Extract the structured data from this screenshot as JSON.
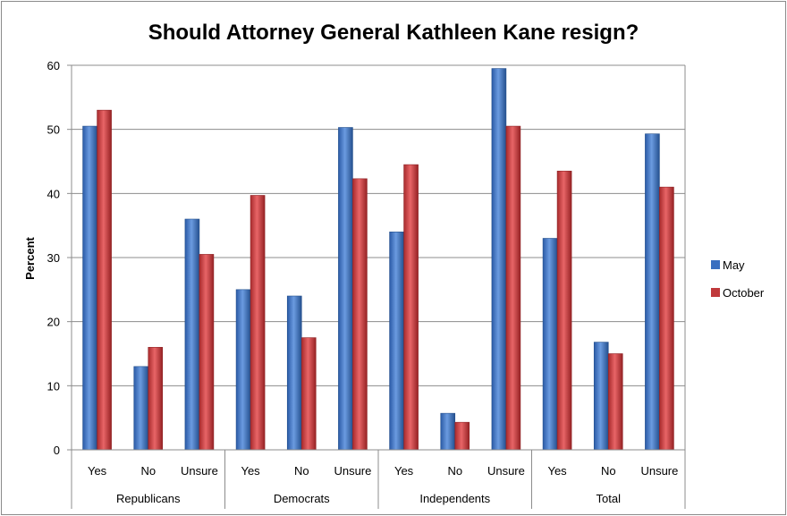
{
  "chart_data": {
    "type": "bar",
    "title": "Should Attorney General Kathleen Kane resign?",
    "xlabel": "",
    "ylabel": "Percent",
    "ylim": [
      0,
      60
    ],
    "yticks": [
      0,
      10,
      20,
      30,
      40,
      50,
      60
    ],
    "grid": true,
    "legend_position": "right",
    "groups": [
      "Republicans",
      "Democrats",
      "Independents",
      "Total"
    ],
    "categories": [
      "Yes",
      "No",
      "Unsure",
      "Yes",
      "No",
      "Unsure",
      "Yes",
      "No",
      "Unsure",
      "Yes",
      "No",
      "Unsure"
    ],
    "series": [
      {
        "name": "May",
        "color": "#3a6fc0",
        "values": [
          50.5,
          13,
          36,
          25,
          24,
          50.3,
          34,
          5.7,
          59.5,
          33,
          16.8,
          49.3
        ]
      },
      {
        "name": "October",
        "color": "#c0393b",
        "values": [
          53,
          16,
          30.5,
          39.7,
          17.5,
          42.3,
          44.5,
          4.3,
          50.5,
          43.5,
          15,
          41
        ]
      }
    ]
  }
}
